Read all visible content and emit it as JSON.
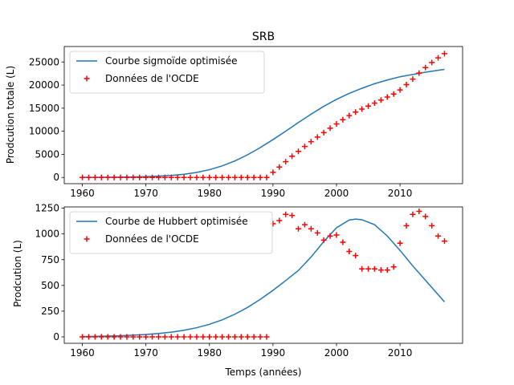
{
  "chart_data": [
    {
      "type": "line",
      "title": "SRB",
      "xlabel": "",
      "ylabel": "Prodcution totale (L)",
      "xlim": [
        1957.15,
        2019.85
      ],
      "ylim": [
        -1350,
        28350
      ],
      "xticks": [
        1960,
        1970,
        1980,
        1990,
        2000,
        2010
      ],
      "yticks": [
        0,
        5000,
        10000,
        15000,
        20000,
        25000
      ],
      "legend_position": "upper-left",
      "series": [
        {
          "name": "Courbe sigmoïde optimisée",
          "kind": "line",
          "color": "#1f77b4",
          "x": [
            1960,
            1962,
            1964,
            1966,
            1968,
            1970,
            1972,
            1974,
            1976,
            1978,
            1980,
            1982,
            1984,
            1986,
            1988,
            1990,
            1992,
            1994,
            1996,
            1998,
            2000,
            2002,
            2004,
            2006,
            2008,
            2010,
            2012,
            2014,
            2016,
            2017
          ],
          "y": [
            14,
            23,
            38,
            62,
            101,
            165,
            268,
            433,
            693,
            1090,
            1680,
            2500,
            3570,
            4900,
            6460,
            8190,
            10000,
            11900,
            13700,
            15400,
            16900,
            18200,
            19300,
            20300,
            21100,
            21800,
            22300,
            22800,
            23200,
            23400
          ]
        },
        {
          "name": "Données de l'OCDE",
          "kind": "scatter",
          "marker": "plus",
          "color": "#ff0000",
          "x": [
            1960,
            1961,
            1962,
            1963,
            1964,
            1965,
            1966,
            1967,
            1968,
            1969,
            1970,
            1971,
            1972,
            1973,
            1974,
            1975,
            1976,
            1977,
            1978,
            1979,
            1980,
            1981,
            1982,
            1983,
            1984,
            1985,
            1986,
            1987,
            1988,
            1989,
            1990,
            1991,
            1992,
            1993,
            1994,
            1995,
            1996,
            1997,
            1998,
            1999,
            2000,
            2001,
            2002,
            2003,
            2004,
            2005,
            2006,
            2007,
            2008,
            2009,
            2010,
            2011,
            2012,
            2013,
            2014,
            2015,
            2016,
            2017
          ],
          "y": [
            0,
            0,
            0,
            0,
            0,
            0,
            0,
            0,
            0,
            0,
            0,
            0,
            0,
            0,
            0,
            0,
            0,
            0,
            0,
            0,
            0,
            0,
            0,
            0,
            0,
            0,
            0,
            0,
            0,
            0,
            1100,
            2250,
            3400,
            4600,
            5650,
            6700,
            7750,
            8750,
            9700,
            10650,
            11600,
            12500,
            13400,
            14150,
            14800,
            15450,
            16100,
            16750,
            17400,
            18050,
            18950,
            20100,
            21300,
            22600,
            23800,
            24900,
            25900,
            26800
          ]
        }
      ]
    },
    {
      "type": "line",
      "title": "",
      "xlabel": "Temps (années)",
      "ylabel": "Prodcution (L)",
      "xlim": [
        1957.15,
        2019.85
      ],
      "ylim": [
        -62.5,
        1262.5
      ],
      "xticks": [
        1960,
        1970,
        1980,
        1990,
        2000,
        2010
      ],
      "yticks": [
        0,
        250,
        500,
        750,
        1000,
        1250
      ],
      "legend_position": "upper-left",
      "series": [
        {
          "name": "Courbe de Hubbert optimisée",
          "kind": "line",
          "color": "#1f77b4",
          "x": [
            1960,
            1962,
            1964,
            1966,
            1968,
            1970,
            1972,
            1974,
            1976,
            1978,
            1980,
            1982,
            1984,
            1986,
            1988,
            1990,
            1992,
            1994,
            1996,
            1998,
            2000,
            2002,
            2003,
            2004,
            2006,
            2008,
            2010,
            2012,
            2014,
            2016,
            2017
          ],
          "y": [
            3,
            5,
            8,
            11,
            16,
            23,
            33,
            46,
            64,
            89,
            122,
            165,
            220,
            286,
            364,
            452,
            547,
            645,
            776,
            926,
            1060,
            1135,
            1145,
            1138,
            1090,
            980,
            840,
            690,
            550,
            410,
            340
          ]
        },
        {
          "name": "Données de l'OCDE",
          "kind": "scatter",
          "marker": "plus",
          "color": "#ff0000",
          "x": [
            1960,
            1961,
            1962,
            1963,
            1964,
            1965,
            1966,
            1967,
            1968,
            1969,
            1970,
            1971,
            1972,
            1973,
            1974,
            1975,
            1976,
            1977,
            1978,
            1979,
            1980,
            1981,
            1982,
            1983,
            1984,
            1985,
            1986,
            1987,
            1988,
            1989,
            1990,
            1991,
            1992,
            1993,
            1994,
            1995,
            1996,
            1997,
            1998,
            1999,
            2000,
            2001,
            2002,
            2003,
            2004,
            2005,
            2006,
            2007,
            2008,
            2009,
            2010,
            2011,
            2012,
            2013,
            2014,
            2015,
            2016,
            2017
          ],
          "y": [
            0,
            0,
            0,
            0,
            0,
            0,
            0,
            0,
            0,
            0,
            0,
            0,
            0,
            0,
            0,
            0,
            0,
            0,
            0,
            0,
            0,
            0,
            0,
            0,
            0,
            0,
            0,
            0,
            0,
            0,
            1100,
            1130,
            1190,
            1180,
            1050,
            1090,
            1050,
            1010,
            940,
            980,
            990,
            920,
            830,
            790,
            660,
            660,
            660,
            650,
            650,
            680,
            910,
            1080,
            1190,
            1220,
            1170,
            1080,
            980,
            930
          ]
        }
      ]
    }
  ]
}
